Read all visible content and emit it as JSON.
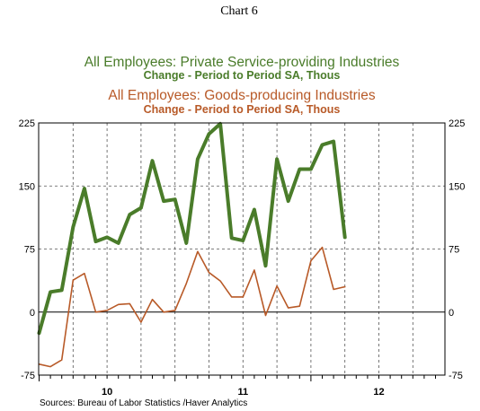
{
  "chart_data": {
    "type": "line",
    "chart_label": "Chart 6",
    "x_tick_labels": [
      "10",
      "11",
      "12"
    ],
    "y_ticks": [
      225,
      150,
      75,
      0,
      -75
    ],
    "ylim": [
      -75,
      225
    ],
    "grid": true,
    "source": "Sources:  Bureau of Labor Statistics /Haver Analytics",
    "series": [
      {
        "name": "All Employees: Private Service-providing Industries",
        "subtitle": "Change - Period to Period    SA, Thous",
        "color": "#4a7c2a",
        "values": [
          -25,
          24,
          26,
          101,
          147,
          84,
          89,
          82,
          116,
          124,
          180,
          132,
          134,
          82,
          182,
          212,
          224,
          88,
          85,
          122,
          55,
          182,
          132,
          170,
          170,
          199,
          203,
          89
        ]
      },
      {
        "name": "All Employees: Goods-producing Industries",
        "subtitle": "Change - Period to Period    SA, Thous",
        "color": "#b85a28",
        "values": [
          -62,
          -65,
          -57,
          38,
          46,
          0,
          2,
          9,
          10,
          -12,
          15,
          0,
          2,
          34,
          72,
          47,
          37,
          18,
          18,
          50,
          -4,
          31,
          5,
          7,
          61,
          77,
          27,
          30
        ]
      }
    ]
  }
}
